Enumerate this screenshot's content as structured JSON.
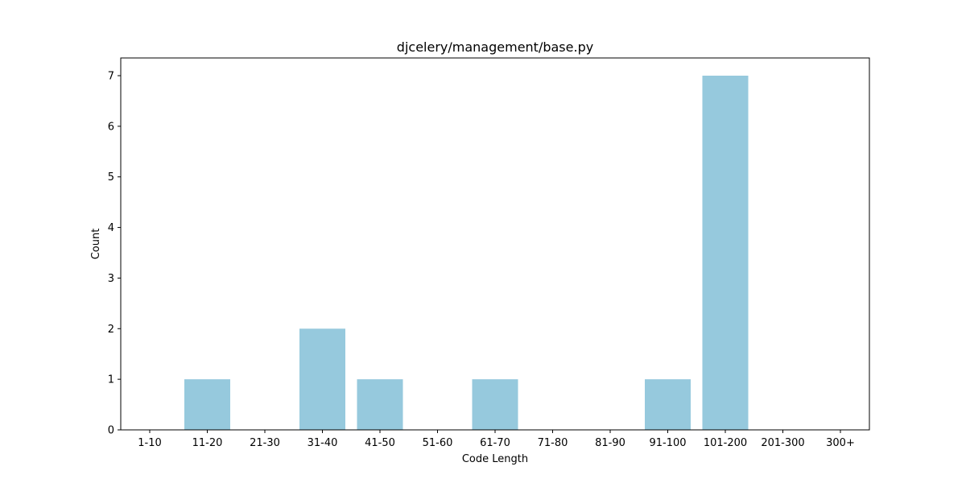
{
  "chart_data": {
    "type": "bar",
    "title": "djcelery/management/base.py",
    "xlabel": "Code Length",
    "ylabel": "Count",
    "categories": [
      "1-10",
      "11-20",
      "21-30",
      "31-40",
      "41-50",
      "51-60",
      "61-70",
      "71-80",
      "81-90",
      "91-100",
      "101-200",
      "201-300",
      "300+"
    ],
    "values": [
      0,
      1,
      0,
      2,
      1,
      0,
      1,
      0,
      0,
      1,
      7,
      0,
      0
    ],
    "ylim": [
      0,
      7.35
    ],
    "yticks": [
      "0",
      "1",
      "2",
      "3",
      "4",
      "5",
      "6",
      "7"
    ],
    "bar_color": "#96c9dd",
    "grid": false,
    "legend": "none"
  }
}
